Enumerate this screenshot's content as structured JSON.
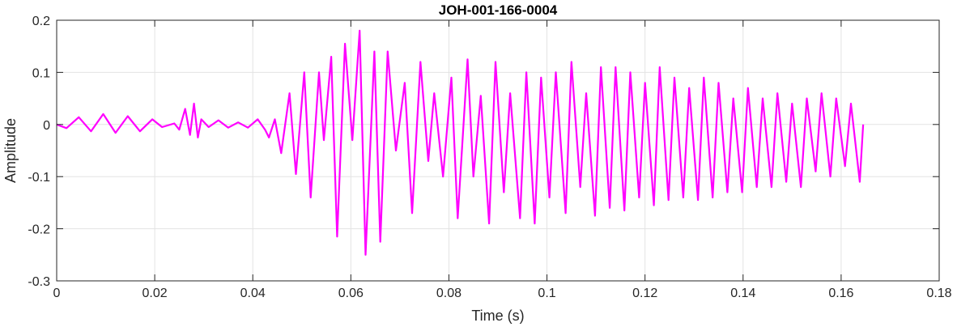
{
  "chart_data": {
    "type": "line",
    "title": "JOH-001-166-0004",
    "xlabel": "Time (s)",
    "ylabel": "Amplitude",
    "xlim": [
      0,
      0.18
    ],
    "ylim": [
      -0.3,
      0.2
    ],
    "x_ticks": [
      0,
      0.02,
      0.04,
      0.06,
      0.08,
      0.1,
      0.12,
      0.14,
      0.16,
      0.18
    ],
    "x_tick_labels": [
      "0",
      "0.02",
      "0.04",
      "0.06",
      "0.08",
      "0.1",
      "0.12",
      "0.14",
      "0.16",
      "0.18"
    ],
    "y_ticks": [
      -0.3,
      -0.2,
      -0.1,
      0,
      0.1,
      0.2
    ],
    "y_tick_labels": [
      "-0.3",
      "-0.2",
      "-0.1",
      "0",
      "0.1",
      "0.2"
    ],
    "grid": true,
    "series": [
      {
        "color": "#ff00ff",
        "x": [
          0,
          0.002,
          0.0045,
          0.007,
          0.0095,
          0.012,
          0.0145,
          0.017,
          0.0195,
          0.0215,
          0.024,
          0.025,
          0.0262,
          0.0272,
          0.028,
          0.0288,
          0.0295,
          0.031,
          0.033,
          0.035,
          0.037,
          0.039,
          0.041,
          0.0425,
          0.0433,
          0.0445,
          0.0458,
          0.0475,
          0.0488,
          0.0505,
          0.0518,
          0.0535,
          0.0545,
          0.056,
          0.0572,
          0.0588,
          0.0603,
          0.0618,
          0.063,
          0.0648,
          0.066,
          0.0675,
          0.0692,
          0.071,
          0.0725,
          0.0742,
          0.0758,
          0.077,
          0.0788,
          0.0805,
          0.0818,
          0.0838,
          0.085,
          0.0865,
          0.0882,
          0.0895,
          0.0912,
          0.0925,
          0.0945,
          0.0958,
          0.0975,
          0.0988,
          0.1005,
          0.1018,
          0.1038,
          0.105,
          0.1068,
          0.108,
          0.1098,
          0.111,
          0.1128,
          0.114,
          0.1158,
          0.117,
          0.1188,
          0.12,
          0.1218,
          0.123,
          0.1248,
          0.126,
          0.1278,
          0.129,
          0.1308,
          0.132,
          0.1338,
          0.135,
          0.1368,
          0.138,
          0.1398,
          0.141,
          0.1428,
          0.144,
          0.1458,
          0.147,
          0.1488,
          0.15,
          0.1518,
          0.153,
          0.1548,
          0.156,
          0.1578,
          0.159,
          0.1608,
          0.162,
          0.1638,
          0.1645
        ],
        "y": [
          0,
          -0.007,
          0.014,
          -0.013,
          0.02,
          -0.016,
          0.016,
          -0.013,
          0.01,
          -0.005,
          0.002,
          -0.01,
          0.03,
          -0.02,
          0.04,
          -0.025,
          0.01,
          -0.005,
          0.008,
          -0.006,
          0.004,
          -0.006,
          0.01,
          -0.01,
          -0.025,
          0.01,
          -0.055,
          0.06,
          -0.095,
          0.1,
          -0.14,
          0.1,
          -0.03,
          0.13,
          -0.215,
          0.155,
          -0.03,
          0.18,
          -0.25,
          0.14,
          -0.225,
          0.14,
          -0.05,
          0.08,
          -0.17,
          0.12,
          -0.07,
          0.06,
          -0.1,
          0.09,
          -0.18,
          0.125,
          -0.1,
          0.055,
          -0.19,
          0.12,
          -0.13,
          0.06,
          -0.18,
          0.1,
          -0.19,
          0.09,
          -0.14,
          0.1,
          -0.17,
          0.12,
          -0.12,
          0.06,
          -0.175,
          0.11,
          -0.16,
          0.11,
          -0.165,
          0.1,
          -0.14,
          0.08,
          -0.155,
          0.11,
          -0.145,
          0.09,
          -0.14,
          0.07,
          -0.145,
          0.09,
          -0.14,
          0.08,
          -0.13,
          0.05,
          -0.13,
          0.07,
          -0.12,
          0.05,
          -0.12,
          0.06,
          -0.11,
          0.04,
          -0.12,
          0.05,
          -0.09,
          0.06,
          -0.1,
          0.05,
          -0.08,
          0.04,
          -0.11,
          0.0
        ]
      }
    ]
  }
}
